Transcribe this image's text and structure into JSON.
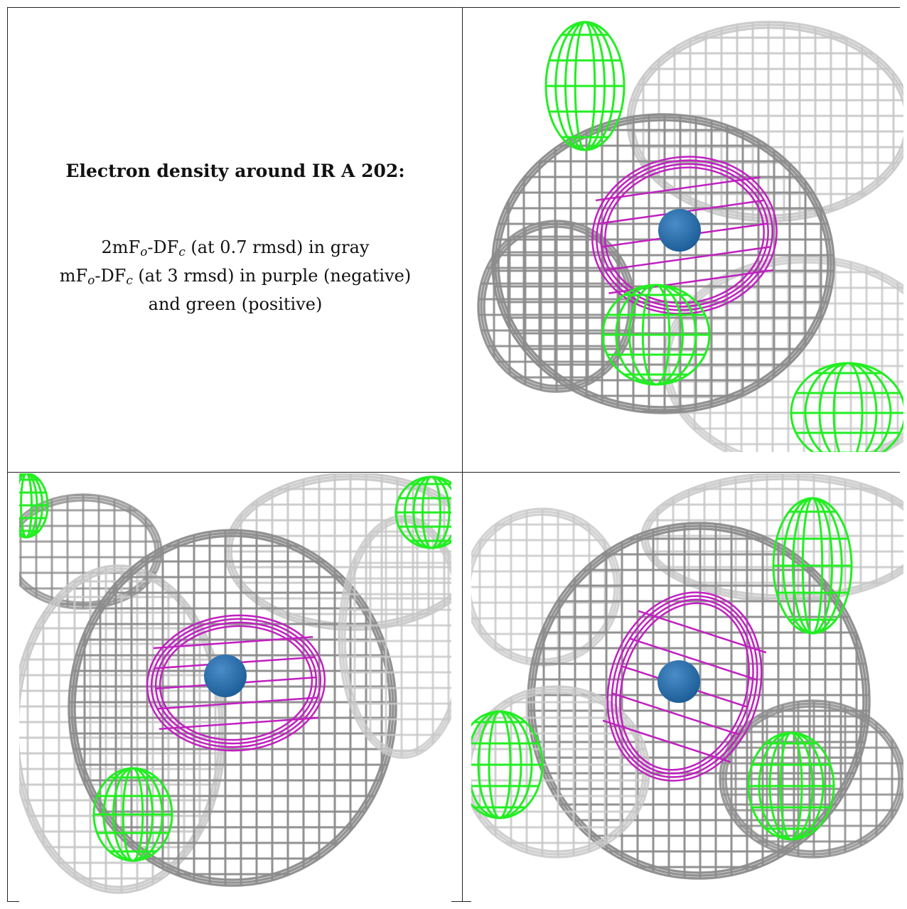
{
  "caption": {
    "title": "Electron density around IR A 202:",
    "line1_pre": "2mF",
    "line1_sub1": "o",
    "line1_mid": "-DF",
    "line1_sub2": "c",
    "line1_post": " (at 0.7 rmsd) in gray",
    "line2_pre": "mF",
    "line2_sub1": "o",
    "line2_mid": "-DF",
    "line2_sub2": "c",
    "line2_post": " (at 3 rmsd) in purple (negative)",
    "line3": "and green (positive)"
  },
  "colors": {
    "gray_mesh": "#8c8c8c",
    "gray_light": "#c8c8c8",
    "purple_mesh": "#c020c0",
    "green_mesh": "#22ee22",
    "atom": "#1e5f99"
  },
  "panels": [
    {
      "name": "view-top-right"
    },
    {
      "name": "view-bottom-left"
    },
    {
      "name": "view-bottom-right"
    }
  ]
}
